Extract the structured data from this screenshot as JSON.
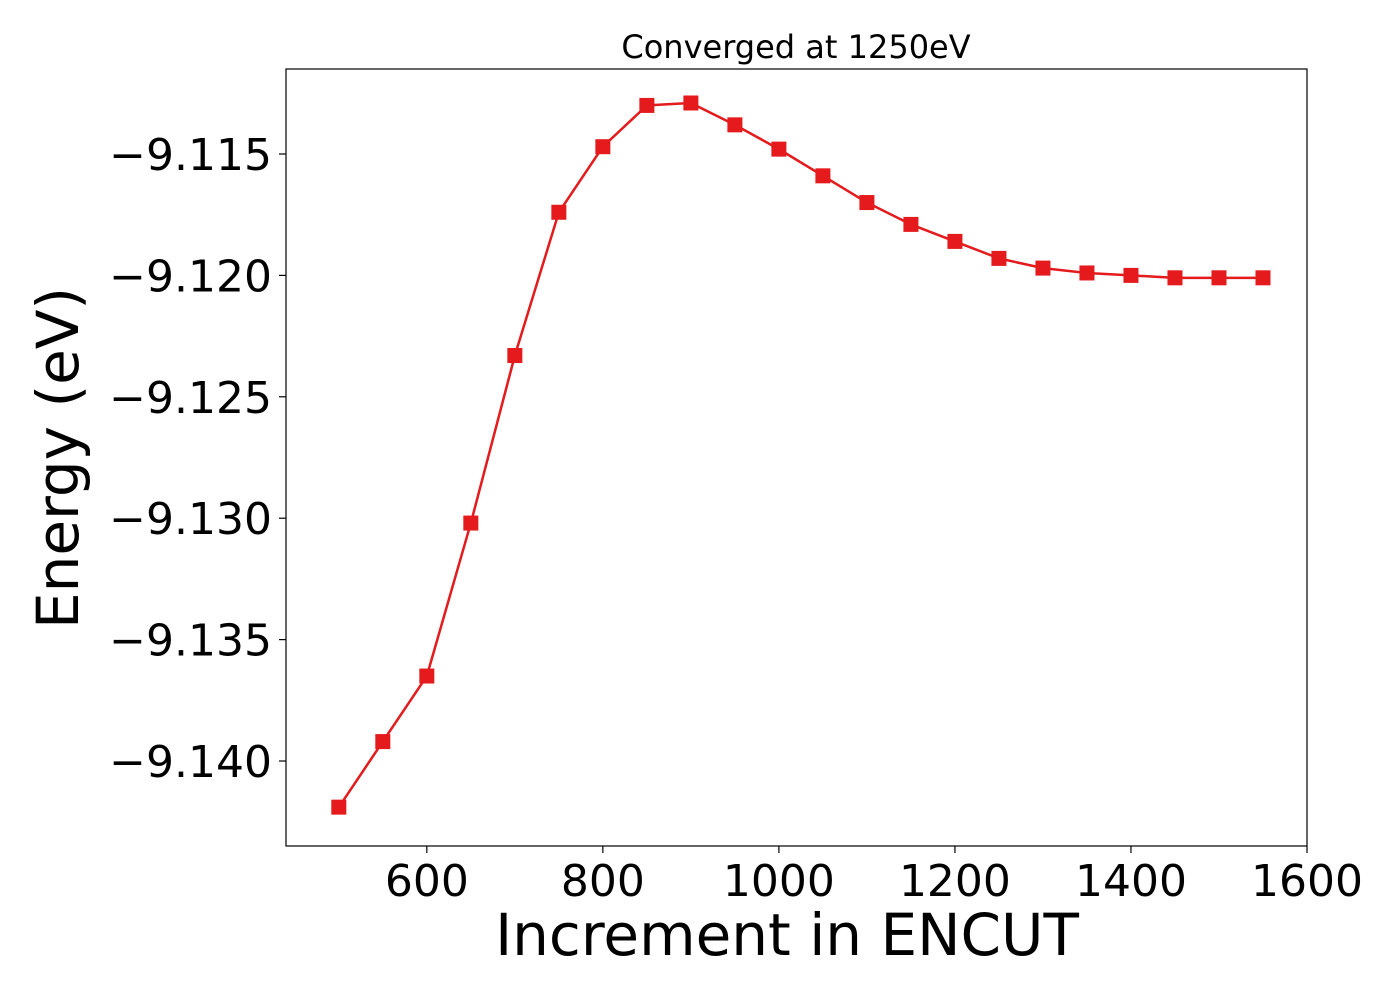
{
  "chart_data": {
    "type": "line",
    "title": "Converged at 1250eV",
    "xlabel": "Increment in ENCUT",
    "ylabel": "Energy (eV)",
    "xlim": [
      440,
      1600
    ],
    "ylim": [
      -9.1435,
      -9.1115
    ],
    "xticks": [
      600,
      800,
      1000,
      1200,
      1400,
      1600
    ],
    "yticks": [
      -9.14,
      -9.135,
      -9.13,
      -9.125,
      -9.12,
      -9.115
    ],
    "ytick_labels": [
      "−9.140",
      "−9.135",
      "−9.130",
      "−9.125",
      "−9.120",
      "−9.115"
    ],
    "grid": false,
    "marker": "square",
    "color": "#e41a1c",
    "series": [
      {
        "x": [
          500,
          550,
          600,
          650,
          700,
          750,
          800,
          850,
          900,
          950,
          1000,
          1050,
          1100,
          1150,
          1200,
          1250,
          1300,
          1350,
          1400,
          1450,
          1500,
          1550
        ],
        "y": [
          -9.1419,
          -9.1392,
          -9.1365,
          -9.1302,
          -9.1233,
          -9.1174,
          -9.1147,
          -9.113,
          -9.1129,
          -9.1138,
          -9.1148,
          -9.1159,
          -9.117,
          -9.1179,
          -9.1186,
          -9.1193,
          -9.1197,
          -9.1199,
          -9.12,
          -9.1201,
          -9.1201,
          -9.1201
        ]
      }
    ]
  }
}
